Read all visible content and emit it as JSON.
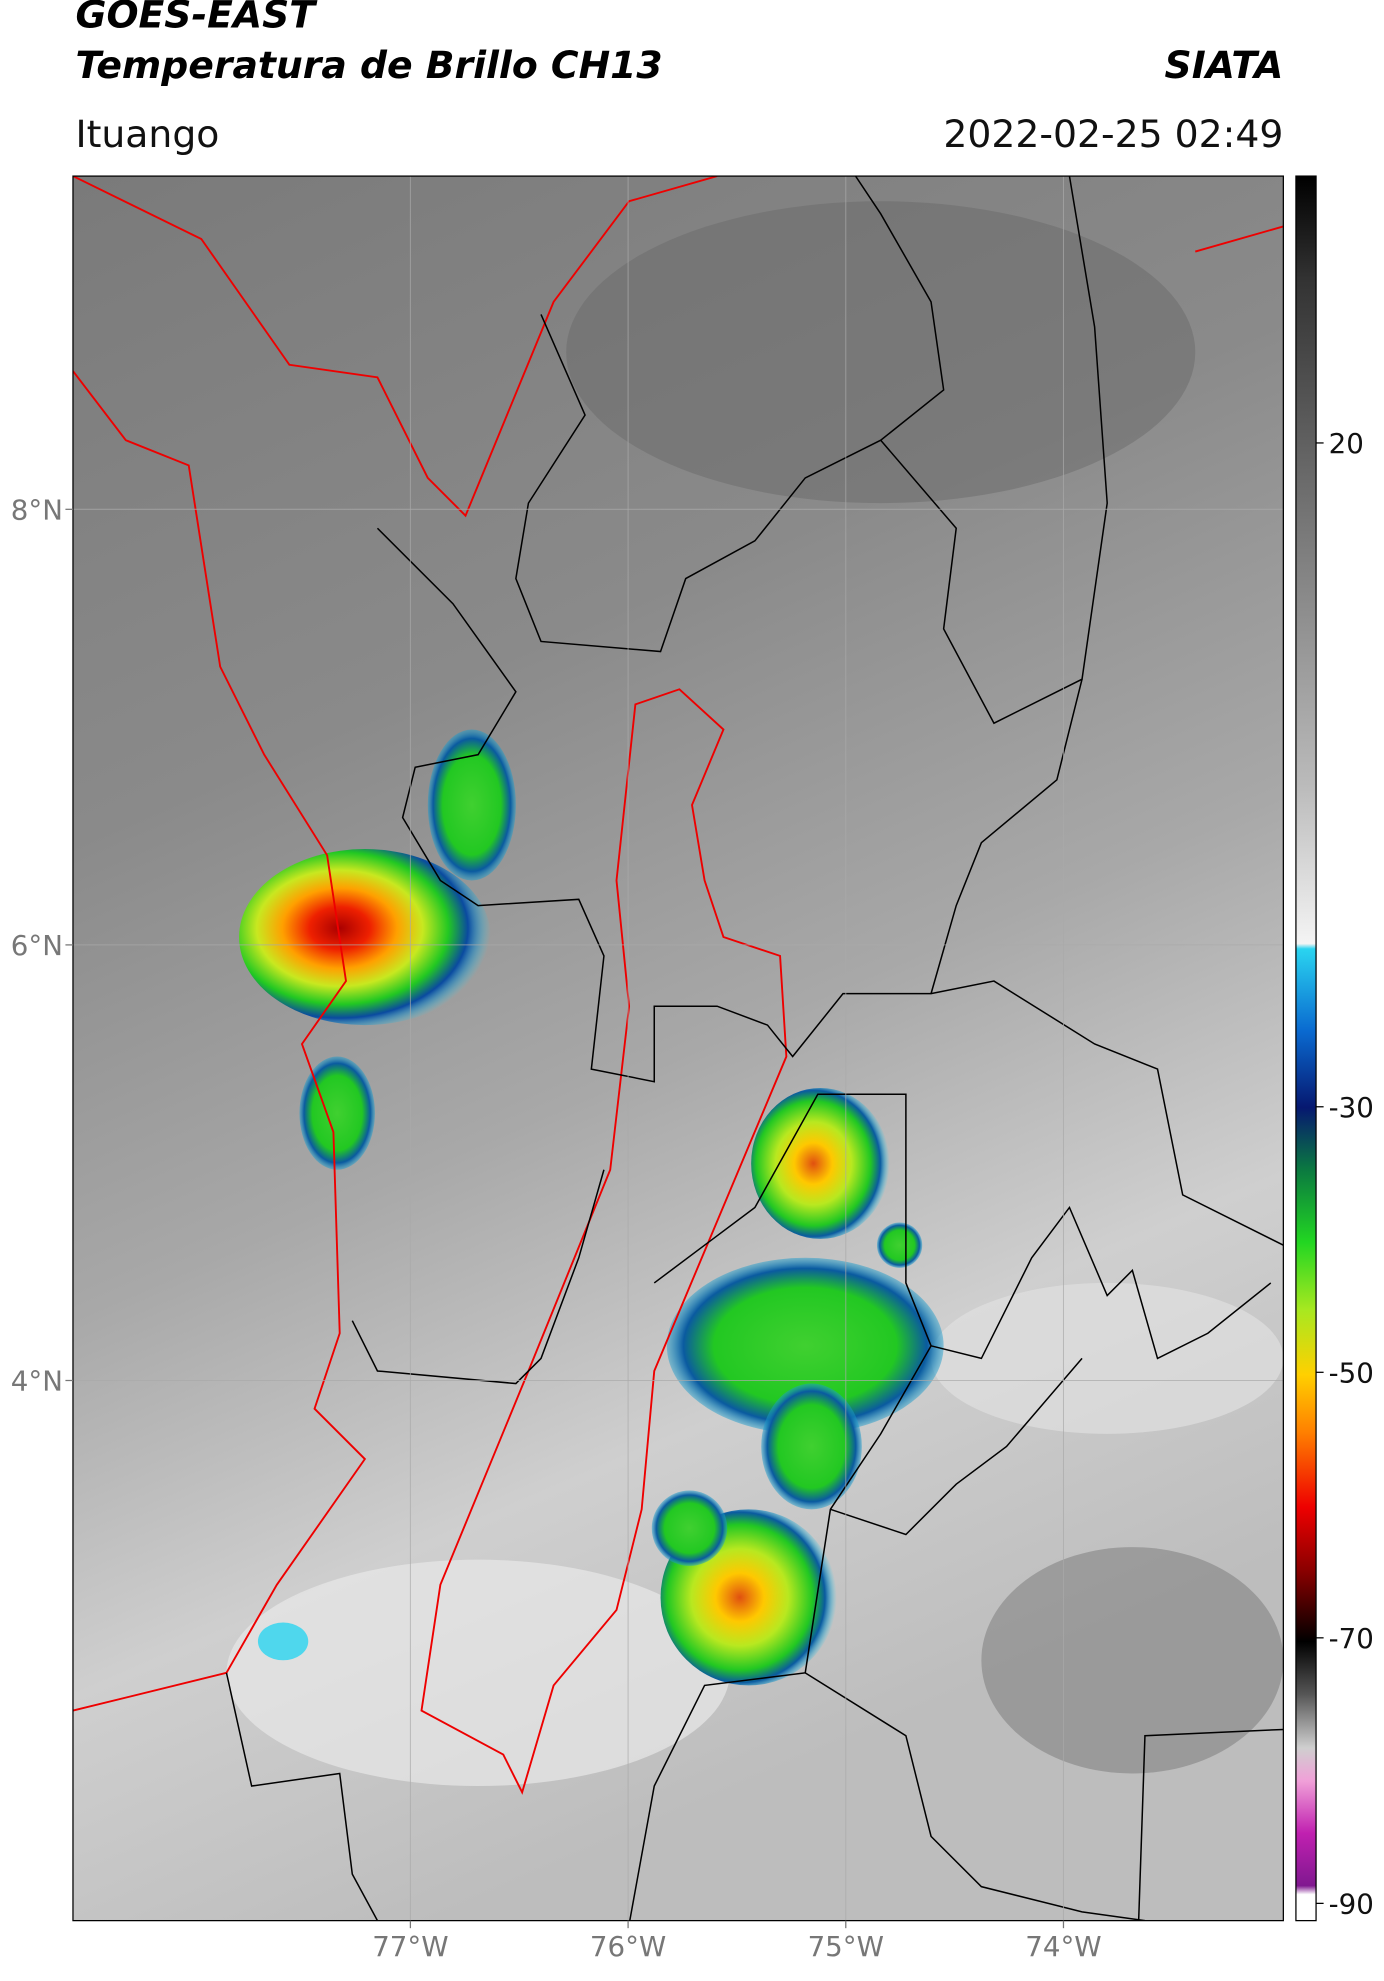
{
  "header": {
    "satellite": "GOES-EAST",
    "product": "Temperatura de Brillo CH13",
    "organization": "SIATA",
    "location": "Ituango",
    "datetime": "2022-02-25 02:49"
  },
  "map": {
    "xlim": [
      -78.55,
      -72.99
    ],
    "ylim": [
      1.52,
      9.53
    ],
    "xticks": [
      {
        "value": -77,
        "label": "77°W"
      },
      {
        "value": -76,
        "label": "76°W"
      },
      {
        "value": -75,
        "label": "75°W"
      },
      {
        "value": -74,
        "label": "74°W"
      }
    ],
    "yticks": [
      {
        "value": 8,
        "label": "8°N"
      },
      {
        "value": 6,
        "label": "6°N"
      },
      {
        "value": 4,
        "label": "4°N"
      }
    ],
    "grid": true
  },
  "colorbar": {
    "lim": [
      -91.3,
      40.1
    ],
    "ticks": [
      20,
      -30,
      -50,
      -70,
      -90
    ]
  }
}
